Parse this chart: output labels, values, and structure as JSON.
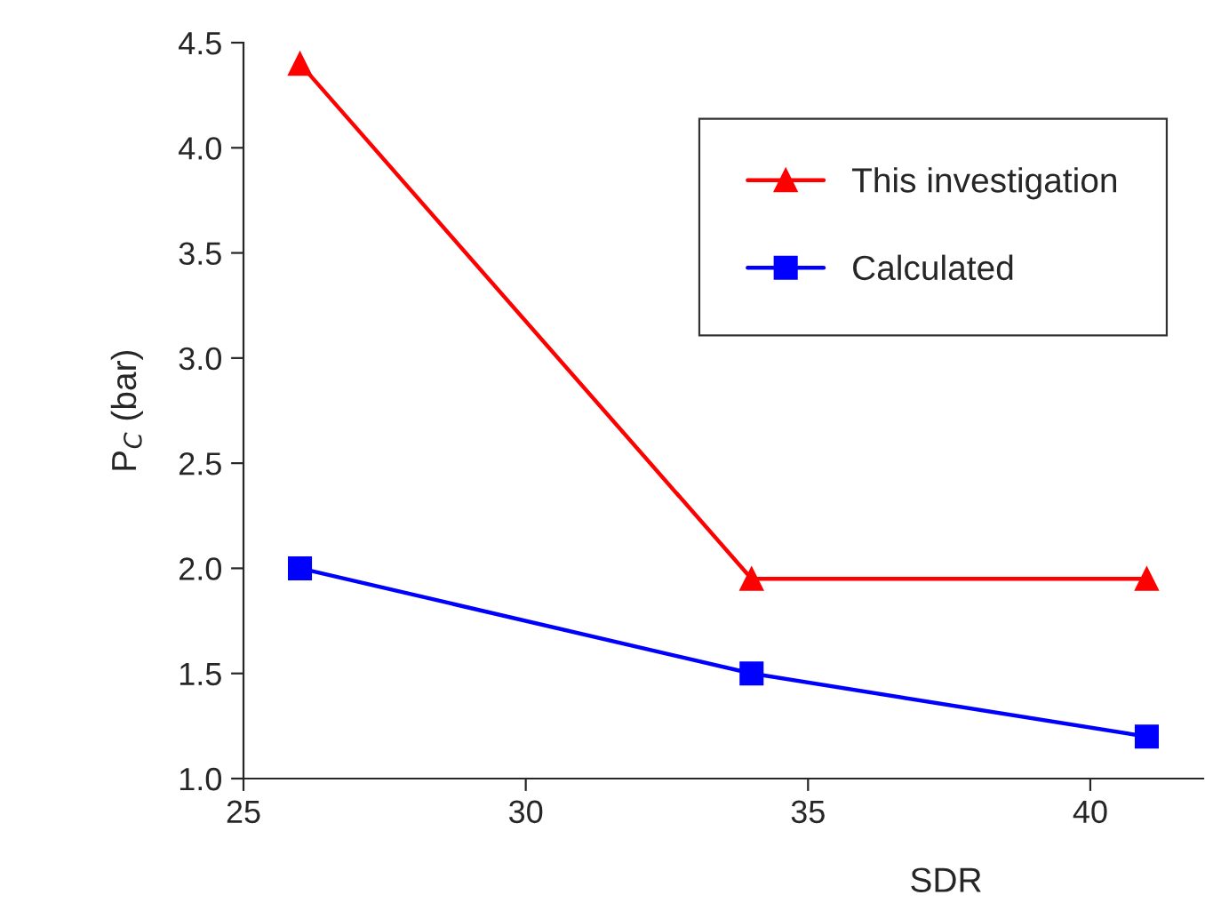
{
  "chart_data": {
    "type": "line",
    "xlabel": "SDR",
    "ylabel": "P$_{C}$ (bar)",
    "x": [
      26,
      34,
      41
    ],
    "series": [
      {
        "name": "This investigation",
        "color": "#ff0000",
        "marker": "triangle",
        "values": [
          4.4,
          1.95,
          1.95
        ]
      },
      {
        "name": "Calculated",
        "color": "#0000ff",
        "marker": "square",
        "values": [
          2.0,
          1.5,
          1.2
        ]
      }
    ],
    "xlim": [
      25,
      42
    ],
    "xticks": [
      25,
      30,
      35,
      40
    ],
    "ylim": [
      1.0,
      4.5
    ],
    "yticks": [
      {
        "value": 1.0,
        "label": "1.0"
      },
      {
        "value": 1.5,
        "label": "1.5"
      },
      {
        "value": 2.0,
        "label": "2.0"
      },
      {
        "value": 2.5,
        "label": "2.5"
      },
      {
        "value": 3.0,
        "label": "3.0"
      },
      {
        "value": 3.5,
        "label": "3.5"
      },
      {
        "value": 4.0,
        "label": "4.0"
      },
      {
        "value": 4.5,
        "label": "4.5"
      }
    ],
    "grid": false,
    "legend": "top right",
    "line_style": "solid"
  }
}
